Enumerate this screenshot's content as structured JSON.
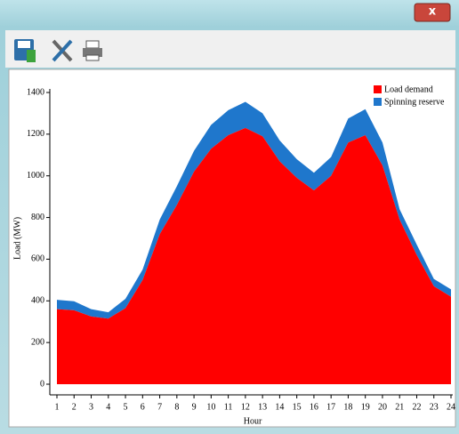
{
  "window": {
    "close_label": "x"
  },
  "chart_data": {
    "type": "stacked-area",
    "x_label": "Hour",
    "y_label": "Load (MW)",
    "x": [
      1,
      2,
      3,
      4,
      5,
      6,
      7,
      8,
      9,
      10,
      11,
      12,
      13,
      14,
      15,
      16,
      17,
      18,
      19,
      20,
      21,
      22,
      23,
      24
    ],
    "series": [
      {
        "name": "Load demand",
        "color": "#ff0000",
        "values": [
          360,
          355,
          325,
          315,
          365,
          500,
          720,
          860,
          1020,
          1130,
          1195,
          1230,
          1190,
          1070,
          990,
          930,
          1000,
          1160,
          1195,
          1050,
          790,
          620,
          470,
          420
        ]
      },
      {
        "name": "Spinning reserve",
        "color": "#1f77cc",
        "values": [
          45,
          43,
          35,
          30,
          45,
          50,
          70,
          90,
          100,
          115,
          120,
          125,
          110,
          100,
          90,
          85,
          90,
          115,
          125,
          110,
          50,
          50,
          35,
          35
        ]
      }
    ],
    "xlim": [
      1,
      24
    ],
    "xticks": [
      1,
      2,
      3,
      4,
      5,
      6,
      7,
      8,
      9,
      10,
      11,
      12,
      13,
      14,
      15,
      16,
      17,
      18,
      19,
      20,
      21,
      22,
      23,
      24
    ],
    "ylim": [
      0,
      1400
    ],
    "yticks": [
      0,
      200,
      400,
      600,
      800,
      1000,
      1200,
      1400
    ],
    "legend": "top-right"
  }
}
